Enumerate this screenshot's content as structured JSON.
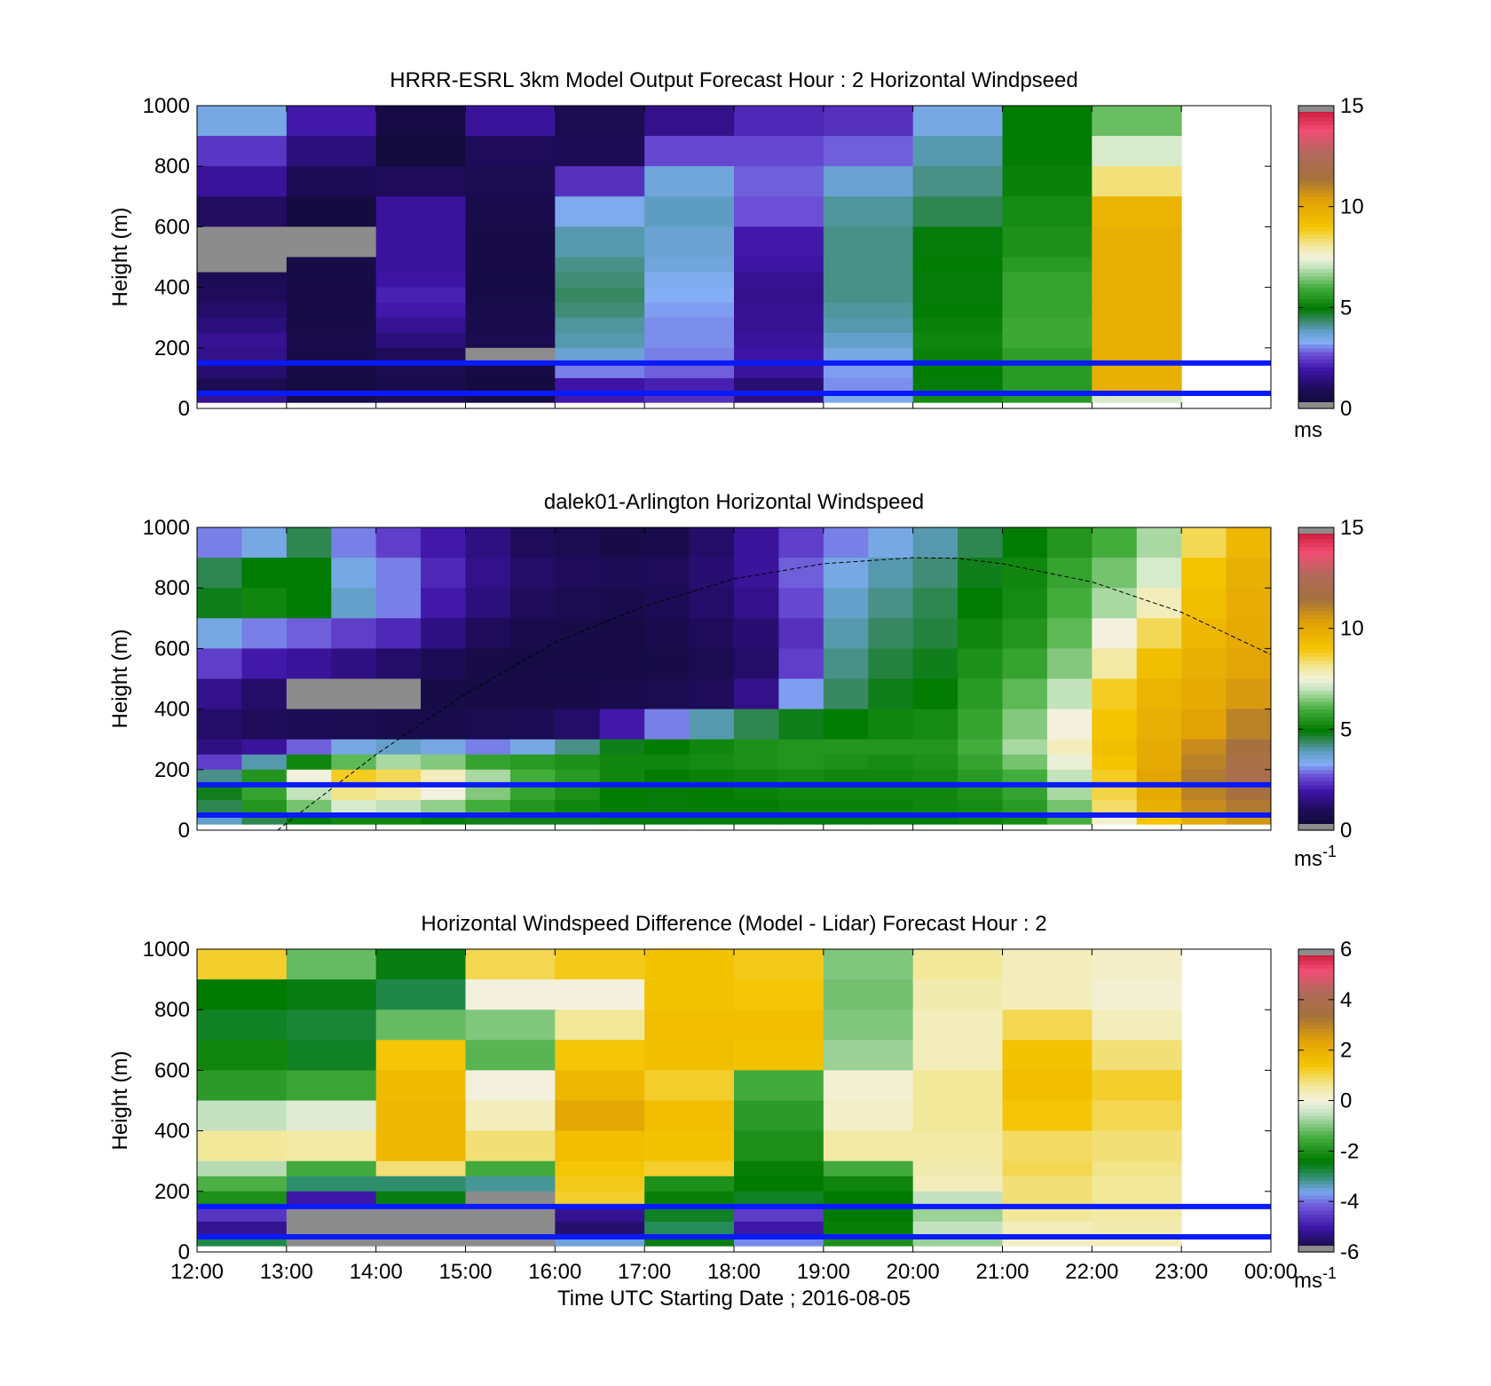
{
  "chart_data": [
    {
      "type": "heatmap",
      "title": "HRRR-ESRL 3km Model Output   Forecast Hour : 2 Horizontal Windpseed",
      "ylabel": "Height (m)",
      "ylim": [
        0,
        1000
      ],
      "yticks": [
        "0",
        "200",
        "400",
        "600",
        "800",
        "1000"
      ],
      "xticks": [
        "12:00",
        "13:00",
        "14:00",
        "15:00",
        "16:00",
        "17:00",
        "18:00",
        "19:00",
        "20:00",
        "21:00",
        "22:00",
        "23:00",
        "00:00"
      ],
      "show_xtick_labels": false,
      "colorbar": {
        "min": 0,
        "max": 15,
        "ticks": [
          "0",
          "5",
          "10",
          "15"
        ],
        "unit": "ms",
        "unit_sup": "",
        "scale": "speed"
      },
      "reference_heights_m": [
        50,
        150
      ],
      "x_hours": [
        12,
        13,
        14,
        15,
        16,
        17,
        18,
        19,
        20,
        21,
        22
      ],
      "height_levels_m": [
        1000,
        900,
        800,
        700,
        600,
        500,
        450,
        400,
        350,
        300,
        250,
        200,
        150,
        100,
        50
      ],
      "values": [
        [
          3.5,
          2.0,
          0.5,
          1.8,
          0.8,
          1.6,
          2.2,
          2.3,
          3.5,
          5.0,
          6.3
        ],
        [
          2.4,
          1.4,
          0.3,
          1.0,
          0.9,
          2.6,
          2.6,
          2.8,
          4.0,
          5.0,
          7.2
        ],
        [
          1.8,
          0.9,
          1.0,
          0.8,
          2.3,
          3.6,
          2.8,
          3.7,
          4.2,
          5.1,
          8.3
        ],
        [
          1.1,
          0.4,
          1.8,
          0.7,
          3.4,
          3.9,
          2.7,
          4.1,
          4.5,
          5.3,
          9.6
        ],
        [
          -1,
          -1,
          1.8,
          0.6,
          4.0,
          3.7,
          2.0,
          4.2,
          4.9,
          5.4,
          9.8
        ],
        [
          -1,
          0.6,
          1.8,
          0.6,
          4.2,
          3.6,
          1.9,
          4.2,
          5.0,
          5.6,
          9.8
        ],
        [
          0.9,
          0.6,
          1.9,
          0.6,
          4.3,
          3.4,
          1.7,
          4.2,
          4.9,
          5.8,
          9.8
        ],
        [
          1.0,
          0.5,
          2.1,
          0.6,
          4.4,
          3.3,
          1.6,
          4.2,
          4.9,
          5.8,
          9.8
        ],
        [
          1.2,
          0.6,
          2.0,
          0.7,
          4.3,
          3.2,
          1.7,
          4.1,
          5.0,
          5.8,
          9.8
        ],
        [
          1.4,
          0.6,
          1.7,
          0.7,
          4.1,
          3.1,
          1.7,
          4.0,
          5.1,
          5.9,
          9.8
        ],
        [
          1.7,
          0.7,
          1.4,
          0.8,
          4.0,
          3.1,
          1.8,
          3.8,
          5.2,
          5.9,
          9.8
        ],
        [
          1.6,
          0.6,
          1.0,
          -1,
          3.7,
          3.0,
          1.9,
          3.5,
          5.1,
          5.7,
          9.8
        ],
        [
          1.3,
          0.6,
          0.8,
          0.5,
          3.0,
          2.8,
          1.8,
          3.2,
          5.0,
          5.6,
          9.8
        ],
        [
          0.8,
          0.4,
          0.7,
          0.4,
          1.9,
          2.1,
          1.3,
          3.1,
          4.9,
          5.6,
          9.8
        ],
        [
          1.7,
          0.7,
          1.0,
          0.6,
          2.0,
          2.3,
          1.5,
          3.4,
          5.3,
          5.6,
          7.2
        ]
      ]
    },
    {
      "type": "heatmap",
      "title": "dalek01-Arlington  Horizontal Windspeed",
      "ylabel": "Height (m)",
      "ylim": [
        0,
        1000
      ],
      "yticks": [
        "0",
        "200",
        "400",
        "600",
        "800",
        "1000"
      ],
      "xticks": [
        "12:00",
        "13:00",
        "14:00",
        "15:00",
        "16:00",
        "17:00",
        "18:00",
        "19:00",
        "20:00",
        "21:00",
        "22:00",
        "23:00",
        "00:00"
      ],
      "show_xtick_labels": false,
      "colorbar": {
        "min": 0,
        "max": 15,
        "ticks": [
          "0",
          "5",
          "10",
          "15"
        ],
        "unit": "ms",
        "unit_sup": "-1",
        "scale": "speed"
      },
      "reference_heights_m": [
        50,
        150
      ],
      "x_hours": [
        12.0,
        12.5,
        13.0,
        13.5,
        14.0,
        14.5,
        15.0,
        15.5,
        16.0,
        16.5,
        17.0,
        17.5,
        18.0,
        18.5,
        19.0,
        19.5,
        20.0,
        20.5,
        21.0,
        21.5,
        22.0,
        22.5,
        23.0,
        23.5
      ],
      "height_levels_m": [
        1000,
        900,
        800,
        700,
        600,
        500,
        400,
        300,
        250,
        200,
        150,
        100,
        50
      ],
      "values": [
        [
          3.0,
          3.5,
          4.5,
          3.0,
          2.5,
          2.0,
          1.5,
          1.0,
          0.8,
          0.6,
          0.7,
          1.2,
          1.8,
          2.5,
          3.0,
          3.5,
          4.0,
          4.5,
          5.0,
          5.5,
          6.0,
          6.8,
          8.5,
          9.5
        ],
        [
          4.5,
          5.0,
          5.0,
          3.5,
          3.0,
          2.2,
          1.6,
          1.2,
          1.0,
          0.9,
          1.0,
          1.3,
          1.8,
          2.8,
          3.5,
          4.0,
          4.3,
          4.8,
          5.2,
          5.8,
          6.4,
          7.2,
          9.0,
          9.8
        ],
        [
          4.8,
          5.2,
          5.0,
          3.8,
          3.0,
          2.0,
          1.4,
          1.0,
          0.8,
          0.7,
          0.9,
          1.2,
          1.6,
          2.6,
          3.8,
          4.2,
          4.5,
          5.0,
          5.3,
          6.0,
          6.8,
          7.8,
          9.2,
          9.9
        ],
        [
          3.5,
          3.0,
          2.8,
          2.5,
          2.2,
          1.5,
          1.0,
          0.7,
          0.6,
          0.5,
          0.7,
          1.0,
          1.3,
          2.3,
          4.0,
          4.4,
          4.6,
          5.2,
          5.5,
          6.2,
          7.5,
          8.5,
          9.5,
          10.0
        ],
        [
          2.5,
          2.0,
          1.8,
          1.5,
          1.2,
          0.9,
          0.6,
          0.5,
          0.5,
          0.5,
          0.6,
          0.8,
          1.2,
          2.5,
          4.2,
          4.6,
          4.8,
          5.4,
          5.8,
          6.5,
          8.0,
          9.2,
          9.8,
          10.2
        ],
        [
          1.6,
          1.2,
          -1,
          -1,
          -1,
          0.6,
          0.5,
          0.5,
          0.6,
          0.7,
          0.8,
          1.0,
          1.6,
          3.2,
          4.4,
          4.8,
          5.0,
          5.6,
          6.2,
          7.0,
          8.8,
          9.6,
          10.0,
          10.5
        ],
        [
          1.2,
          1.0,
          0.9,
          0.8,
          0.7,
          0.7,
          0.8,
          0.9,
          1.2,
          2.0,
          3.0,
          4.0,
          4.5,
          4.8,
          5.0,
          5.2,
          5.3,
          5.8,
          6.5,
          7.5,
          9.0,
          9.8,
          10.3,
          11.0
        ],
        [
          1.5,
          1.8,
          2.8,
          3.5,
          3.8,
          3.5,
          3.0,
          3.5,
          4.2,
          4.8,
          5.0,
          5.2,
          5.4,
          5.5,
          5.5,
          5.5,
          5.5,
          6.0,
          6.8,
          7.8,
          9.2,
          10.0,
          10.8,
          11.5
        ],
        [
          2.5,
          4.0,
          5.2,
          6.2,
          6.8,
          6.5,
          5.8,
          5.6,
          5.4,
          5.2,
          5.2,
          5.3,
          5.4,
          5.5,
          5.4,
          5.3,
          5.4,
          5.8,
          6.4,
          7.4,
          9.0,
          10.0,
          11.0,
          11.8
        ],
        [
          4.2,
          5.5,
          7.5,
          8.8,
          8.5,
          7.8,
          6.8,
          6.0,
          5.6,
          5.2,
          5.0,
          5.1,
          5.2,
          5.3,
          5.2,
          5.2,
          5.3,
          5.6,
          6.0,
          7.0,
          8.8,
          10.2,
          11.2,
          12.0
        ],
        [
          4.8,
          5.8,
          7.0,
          8.2,
          8.0,
          7.5,
          6.5,
          5.8,
          5.4,
          5.0,
          4.9,
          5.0,
          5.1,
          5.2,
          5.2,
          5.2,
          5.2,
          5.4,
          5.8,
          6.8,
          8.6,
          10.0,
          11.0,
          11.6
        ],
        [
          4.5,
          5.5,
          6.4,
          7.2,
          7.0,
          6.6,
          6.0,
          5.5,
          5.2,
          5.0,
          4.9,
          5.0,
          5.0,
          5.1,
          5.1,
          5.1,
          5.2,
          5.3,
          5.6,
          6.4,
          8.4,
          9.8,
          10.8,
          11.2
        ],
        [
          3.8,
          4.5,
          5.0,
          5.2,
          5.2,
          5.0,
          4.8,
          4.8,
          4.8,
          4.9,
          4.9,
          5.0,
          5.0,
          5.0,
          5.0,
          5.0,
          5.0,
          5.1,
          5.3,
          6.0,
          7.6,
          9.0,
          10.0,
          10.6
        ]
      ],
      "cloud_base_curve_m": [
        [
          12.9,
          0
        ],
        [
          14,
          250
        ],
        [
          15,
          450
        ],
        [
          16,
          620
        ],
        [
          17,
          740
        ],
        [
          18,
          830
        ],
        [
          19,
          880
        ],
        [
          20,
          900
        ],
        [
          20.5,
          898
        ],
        [
          21,
          880
        ],
        [
          22,
          820
        ],
        [
          23,
          720
        ],
        [
          24,
          580
        ]
      ]
    },
    {
      "type": "heatmap",
      "title": "Horizontal Windspeed Difference (Model - Lidar) Forecast Hour : 2",
      "xlabel": "Time UTC  Starting Date ; 2016-08-05",
      "ylabel": "Height (m)",
      "ylim": [
        0,
        1000
      ],
      "yticks": [
        "0",
        "200",
        "400",
        "600",
        "800",
        "1000"
      ],
      "xticks": [
        "12:00",
        "13:00",
        "14:00",
        "15:00",
        "16:00",
        "17:00",
        "18:00",
        "19:00",
        "20:00",
        "21:00",
        "22:00",
        "23:00",
        "00:00"
      ],
      "show_xtick_labels": true,
      "colorbar": {
        "min": -6,
        "max": 6,
        "ticks": [
          "-6",
          "-4",
          "-2",
          "0",
          "2",
          "4",
          "6"
        ],
        "unit": "ms",
        "unit_sup": "-1",
        "scale": "diff"
      },
      "reference_heights_m": [
        50,
        150
      ],
      "x_hours": [
        12,
        13,
        14,
        15,
        16,
        17,
        18,
        19,
        20,
        21,
        22
      ],
      "height_levels_m": [
        1000,
        900,
        800,
        700,
        600,
        500,
        400,
        300,
        250,
        200,
        150,
        100,
        50
      ],
      "values": [
        [
          1.2,
          -1.2,
          -2.5,
          1.0,
          1.3,
          1.5,
          1.3,
          -1.0,
          0.6,
          0.3,
          0.2
        ],
        [
          -2.4,
          -2.5,
          -2.8,
          0.0,
          0.0,
          1.5,
          1.4,
          -1.1,
          0.4,
          0.3,
          0.1
        ],
        [
          -2.6,
          -2.7,
          -1.2,
          -1.0,
          0.6,
          1.6,
          1.6,
          -1.0,
          0.3,
          1.0,
          0.3
        ],
        [
          -2.2,
          -2.6,
          1.4,
          -1.3,
          1.4,
          1.6,
          1.5,
          -0.8,
          0.3,
          1.5,
          0.8
        ],
        [
          -1.8,
          -1.6,
          1.7,
          0.0,
          1.8,
          1.2,
          -1.5,
          0.1,
          0.6,
          1.6,
          1.2
        ],
        [
          -0.5,
          -0.2,
          1.8,
          0.3,
          2.2,
          1.6,
          -1.8,
          0.2,
          0.6,
          1.4,
          1.0
        ],
        [
          0.6,
          0.5,
          1.8,
          0.8,
          1.6,
          1.5,
          -2.0,
          0.5,
          0.5,
          0.9,
          0.8
        ],
        [
          -0.6,
          -1.5,
          0.8,
          -1.5,
          1.4,
          1.2,
          -2.3,
          -1.5,
          0.4,
          1.0,
          0.7
        ],
        [
          -1.4,
          -3.0,
          -3.0,
          -3.2,
          1.3,
          -2.0,
          -2.4,
          -2.2,
          0.3,
          0.8,
          0.6
        ],
        [
          -2.0,
          -5.0,
          -2.5,
          -9.0,
          1.2,
          -2.3,
          -2.6,
          -2.4,
          -0.5,
          0.8,
          0.6
        ],
        [
          -4.6,
          -9.0,
          -9.0,
          -9.0,
          -5.2,
          -2.6,
          -4.5,
          -2.4,
          -0.8,
          0.6,
          0.5
        ],
        [
          -5.2,
          -9.0,
          -9.0,
          -9.0,
          -5.5,
          -2.9,
          -5.0,
          -2.3,
          -0.5,
          0.3,
          0.4
        ],
        [
          -2.8,
          -9.0,
          -9.0,
          -9.0,
          -3.5,
          -2.5,
          -3.8,
          -2.0,
          -0.8,
          0.2,
          0.3
        ]
      ]
    }
  ]
}
